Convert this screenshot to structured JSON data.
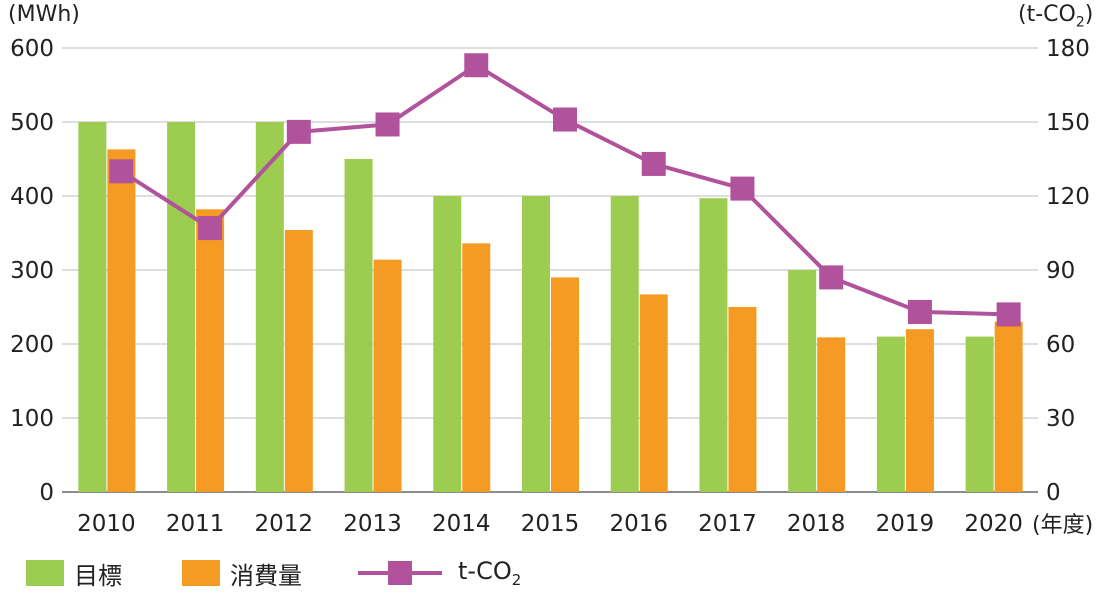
{
  "chart_data": {
    "type": "bar",
    "categories": [
      "2010",
      "2011",
      "2012",
      "2013",
      "2014",
      "2015",
      "2016",
      "2017",
      "2018",
      "2019",
      "2020"
    ],
    "series": [
      {
        "name": "目標",
        "type": "bar",
        "axis": "left",
        "color": "#9ccc50",
        "values": [
          500,
          500,
          500,
          450,
          400,
          400,
          400,
          397,
          300,
          210,
          210
        ]
      },
      {
        "name": "消費量",
        "type": "bar",
        "axis": "left",
        "color": "#f59a23",
        "values": [
          463,
          382,
          354,
          314,
          336,
          290,
          267,
          250,
          209,
          220,
          230
        ]
      },
      {
        "name": "t-CO",
        "name_subscript": "2",
        "type": "line",
        "axis": "right",
        "color": "#b0529c",
        "values": [
          130,
          107,
          146,
          149,
          173,
          151,
          133,
          123,
          87,
          73,
          72
        ]
      }
    ],
    "ylabel_left": "(MWh)",
    "ylabel_right": "(t-CO",
    "ylabel_right_subscript": "2",
    "ylabel_right_close": ")",
    "xlabel": "(年度)",
    "ylim_left": [
      0,
      600
    ],
    "yticks_left": [
      0,
      100,
      200,
      300,
      400,
      500,
      600
    ],
    "ylim_right": [
      0,
      180
    ],
    "yticks_right": [
      0,
      30,
      60,
      90,
      120,
      150,
      180
    ],
    "grid": true,
    "legend_position": "bottom"
  }
}
